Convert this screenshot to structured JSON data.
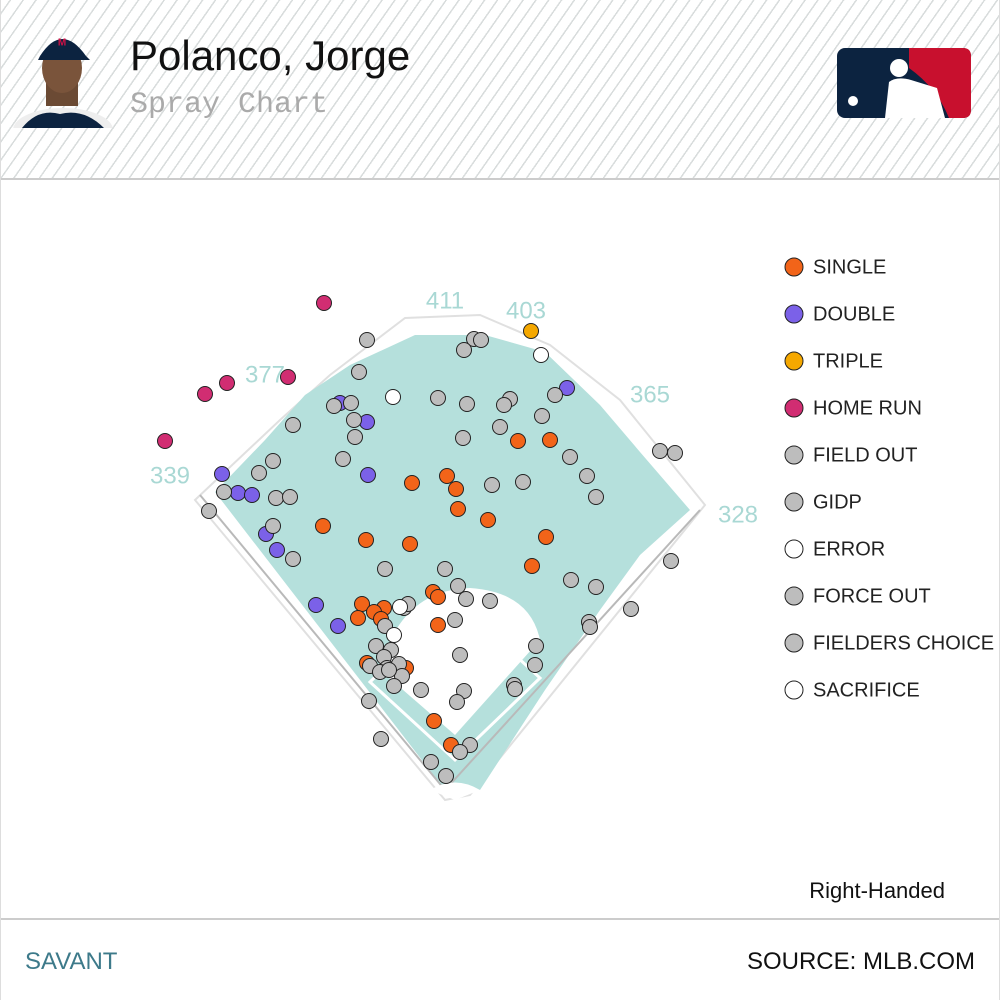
{
  "header": {
    "title": "Polanco, Jorge",
    "subtitle": "Spray Chart"
  },
  "chart_data": {
    "type": "scatter",
    "xlim": [
      150,
      750
    ],
    "ylim": [
      800,
      280
    ],
    "fence_distances": [
      339,
      377,
      411,
      403,
      365,
      328
    ],
    "batter_side": "Right-Handed",
    "series": [
      {
        "name": "SINGLE",
        "color": "#f26419",
        "x": [
          518,
          550,
          447,
          412,
          456,
          458,
          488,
          323,
          366,
          410,
          546,
          532,
          433,
          438,
          362,
          384,
          374,
          358,
          381,
          438,
          367,
          406,
          434,
          451
        ],
        "y": [
          441,
          440,
          476,
          483,
          489,
          509,
          520,
          526,
          540,
          544,
          537,
          566,
          592,
          597,
          604,
          608,
          612,
          618,
          619,
          625,
          663,
          668,
          721,
          745
        ]
      },
      {
        "name": "DOUBLE",
        "color": "#7b61e8",
        "x": [
          567,
          340,
          367,
          222,
          368,
          238,
          252,
          266,
          277,
          316,
          338
        ],
        "y": [
          388,
          403,
          422,
          474,
          475,
          493,
          495,
          534,
          550,
          605,
          626
        ]
      },
      {
        "name": "TRIPLE",
        "color": "#f5a800",
        "x": [
          531
        ],
        "y": [
          331
        ]
      },
      {
        "name": "HOME RUN",
        "color": "#d12d72",
        "x": [
          324,
          288,
          227,
          205,
          165
        ],
        "y": [
          303,
          377,
          383,
          394,
          441
        ]
      },
      {
        "name": "FIELD OUT",
        "color": "#bdbdbd",
        "x": [
          367,
          474,
          481,
          464,
          359,
          334,
          351,
          438,
          467,
          510,
          504,
          555,
          542,
          354,
          293,
          355,
          463,
          500,
          343,
          273,
          259,
          570,
          587,
          660,
          675,
          523,
          492,
          596,
          224,
          276,
          290,
          209,
          273,
          293,
          385,
          445,
          458,
          571,
          596,
          490,
          466,
          631,
          589,
          590,
          455,
          671,
          404,
          408,
          385,
          376,
          391,
          384,
          370,
          387,
          399,
          380,
          402,
          389,
          421,
          394,
          369,
          460,
          536,
          535,
          514,
          515,
          464,
          457,
          381,
          470,
          460,
          431,
          446
        ],
        "y": [
          340,
          339,
          340,
          350,
          372,
          406,
          403,
          398,
          404,
          399,
          405,
          395,
          416,
          420,
          425,
          437,
          438,
          427,
          459,
          461,
          473,
          457,
          476,
          451,
          453,
          482,
          485,
          497,
          492,
          498,
          497,
          511,
          526,
          559,
          569,
          569,
          586,
          580,
          587,
          601,
          599,
          609,
          622,
          627,
          620,
          561,
          608,
          604,
          626,
          646,
          650,
          657,
          666,
          668,
          664,
          672,
          676,
          670,
          690,
          686,
          701,
          655,
          646,
          665,
          685,
          689,
          691,
          702,
          739,
          745,
          752,
          762,
          776
        ]
      },
      {
        "name": "GIDP",
        "color": "#bdbdbd",
        "x": [],
        "y": []
      },
      {
        "name": "ERROR",
        "color": "#ffffff",
        "x": [
          541,
          393,
          394,
          400
        ],
        "y": [
          355,
          397,
          635,
          607
        ]
      },
      {
        "name": "FORCE OUT",
        "color": "#bdbdbd",
        "x": [],
        "y": []
      },
      {
        "name": "FIELDERS CHOICE",
        "color": "#bdbdbd",
        "x": [],
        "y": []
      },
      {
        "name": "SACRIFICE",
        "color": "#ffffff",
        "x": [],
        "y": []
      }
    ]
  },
  "footer": {
    "left": "SAVANT",
    "right": "SOURCE: MLB.COM"
  }
}
